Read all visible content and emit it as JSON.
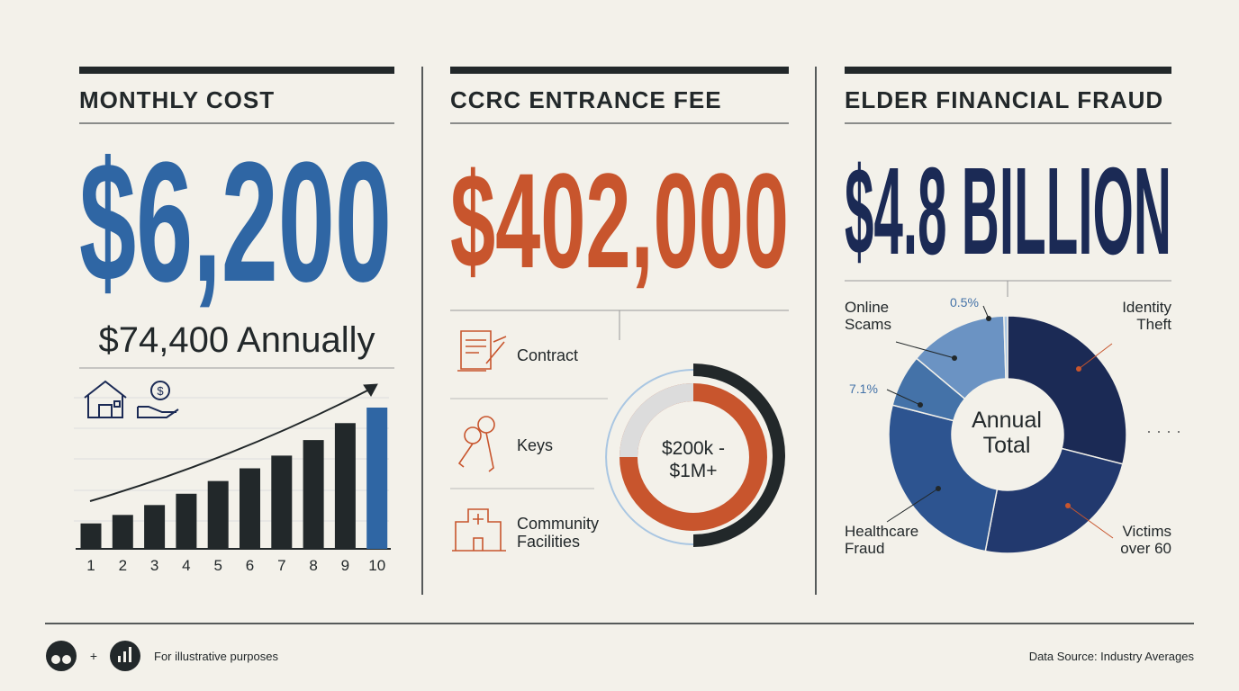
{
  "panels": [
    {
      "title": "MONTHLY COST",
      "headline": "$6,200",
      "subtitle": "$74,400 Annually"
    },
    {
      "title": "CCRC ENTRANCE FEE",
      "headline": "$402,000",
      "items": [
        "Contract",
        "Keys",
        "Community Facilities"
      ],
      "ring_label": "$200k - $1M+"
    },
    {
      "title": "ELDER FINANCIAL FRAUD",
      "headline": "$4.8 BILLION",
      "center_label": "Annual Total",
      "more_label": "· · · ·"
    }
  ],
  "chart_data": [
    {
      "type": "bar",
      "categories": [
        "1",
        "2",
        "3",
        "4",
        "5",
        "6",
        "7",
        "8",
        "9",
        "10"
      ],
      "values": [
        18,
        24,
        31,
        39,
        48,
        57,
        66,
        77,
        89,
        100
      ],
      "colors": [
        "#22282a",
        "#22282a",
        "#22282a",
        "#22282a",
        "#22282a",
        "#22282a",
        "#22282a",
        "#22282a",
        "#22282a",
        "#2f66a4"
      ]
    },
    {
      "type": "pie",
      "categories": [
        "Identity Theft",
        "Victims over 60",
        "Healthcare Fraud",
        null,
        "Online Scams",
        null
      ],
      "values": [
        29,
        24,
        26,
        7.1,
        13.4,
        0.5
      ],
      "value_labels": [
        null,
        null,
        null,
        "7.1%",
        null,
        "0.5%"
      ],
      "colors": [
        "#1b2a55",
        "#22396e",
        "#2d5490",
        "#4472a8",
        "#6b93c3",
        "#a9c6e2"
      ]
    }
  ],
  "footer": {
    "note": "For illustrative purposes",
    "source": "Data Source: Industry Averages"
  }
}
